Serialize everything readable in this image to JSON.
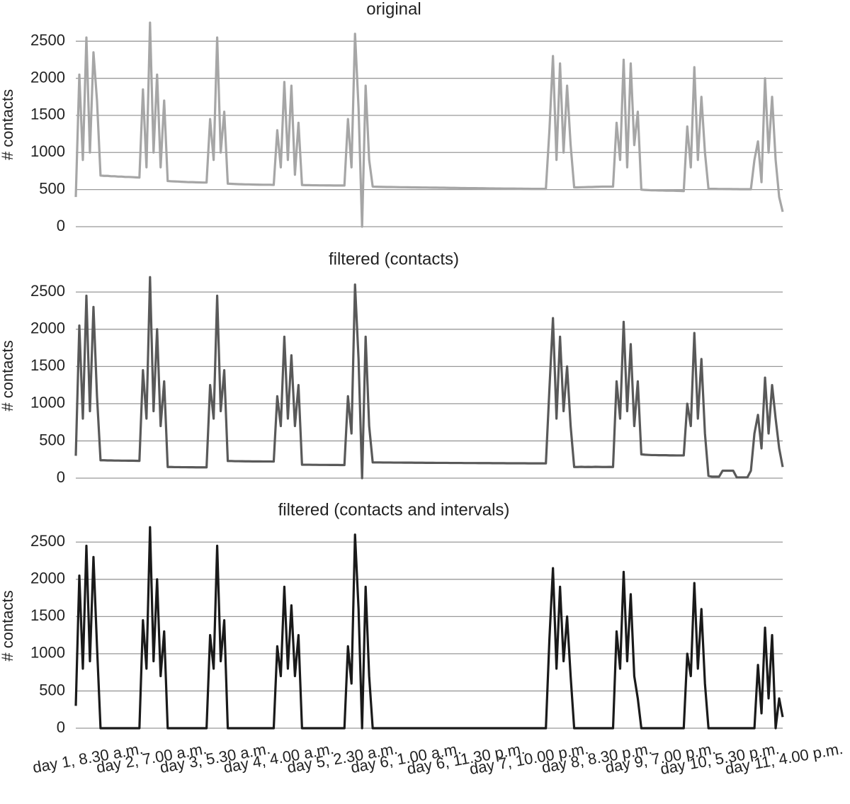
{
  "chart_data": [
    {
      "type": "line",
      "title": "original",
      "y_label": "# contacts",
      "color": "#a6a6a6",
      "ylim": [
        0,
        2750
      ],
      "yticks": [
        0,
        500,
        1000,
        1500,
        2000,
        2500
      ],
      "grid": true,
      "values": [
        400,
        2050,
        900,
        2550,
        1000,
        2350,
        1700,
        690,
        685,
        685,
        680,
        680,
        675,
        675,
        670,
        670,
        668,
        665,
        662,
        1850,
        800,
        2750,
        1000,
        2050,
        800,
        1700,
        615,
        612,
        610,
        608,
        605,
        603,
        600,
        600,
        598,
        597,
        595,
        595,
        1450,
        900,
        2550,
        1000,
        1550,
        580,
        578,
        575,
        573,
        572,
        570,
        570,
        568,
        567,
        566,
        565,
        565,
        565,
        563,
        1300,
        800,
        1950,
        900,
        1900,
        700,
        1400,
        562,
        560,
        560,
        558,
        558,
        557,
        557,
        556,
        556,
        555,
        555,
        555,
        555,
        1450,
        800,
        2600,
        1600,
        0,
        1900,
        900,
        540,
        538,
        537,
        536,
        535,
        535,
        534,
        533,
        532,
        532,
        531,
        530,
        530,
        529,
        528,
        528,
        527,
        526,
        526,
        525,
        525,
        524,
        523,
        523,
        522,
        521,
        521,
        520,
        520,
        519,
        518,
        518,
        517,
        516,
        516,
        515,
        515,
        514,
        514,
        513,
        513,
        512,
        512,
        511,
        511,
        510,
        510,
        510,
        510,
        510,
        1300,
        2300,
        900,
        2200,
        1000,
        1900,
        1100,
        530,
        530,
        532,
        533,
        535,
        535,
        537,
        538,
        540,
        540,
        540,
        540,
        1400,
        900,
        2250,
        800,
        2200,
        1100,
        1550,
        500,
        495,
        493,
        490,
        490,
        488,
        488,
        486,
        485,
        485,
        483,
        482,
        480,
        1350,
        800,
        2150,
        900,
        1750,
        1000,
        510,
        510,
        510,
        508,
        508,
        507,
        507,
        506,
        506,
        505,
        505,
        505,
        505,
        900,
        1150,
        600,
        2000,
        1000,
        1750,
        900,
        400,
        200
      ]
    },
    {
      "type": "line",
      "title": "filtered (contacts)",
      "y_label": "# contacts",
      "color": "#595959",
      "ylim": [
        0,
        2750
      ],
      "yticks": [
        0,
        500,
        1000,
        1500,
        2000,
        2500
      ],
      "grid": true,
      "values": [
        300,
        2050,
        800,
        2450,
        900,
        2300,
        1100,
        240,
        240,
        238,
        238,
        236,
        236,
        235,
        235,
        234,
        234,
        233,
        232,
        1450,
        800,
        2700,
        900,
        2000,
        700,
        1300,
        150,
        150,
        148,
        148,
        147,
        147,
        146,
        146,
        145,
        145,
        145,
        145,
        1250,
        800,
        2450,
        900,
        1450,
        230,
        230,
        228,
        228,
        227,
        226,
        226,
        225,
        225,
        225,
        224,
        224,
        224,
        223,
        1100,
        700,
        1900,
        800,
        1650,
        700,
        1250,
        180,
        180,
        180,
        179,
        179,
        178,
        178,
        178,
        177,
        177,
        177,
        176,
        176,
        1100,
        600,
        2600,
        1600,
        0,
        1900,
        700,
        212,
        211,
        211,
        210,
        210,
        210,
        209,
        209,
        209,
        208,
        208,
        208,
        207,
        207,
        207,
        206,
        206,
        206,
        205,
        205,
        205,
        205,
        204,
        204,
        204,
        204,
        203,
        203,
        203,
        203,
        202,
        202,
        202,
        202,
        201,
        201,
        201,
        201,
        200,
        200,
        200,
        200,
        200,
        200,
        199,
        199,
        199,
        199,
        199,
        198,
        1200,
        2150,
        800,
        1900,
        900,
        1500,
        700,
        150,
        150,
        152,
        150,
        151,
        150,
        152,
        151,
        150,
        150,
        151,
        150,
        1300,
        800,
        2100,
        900,
        1800,
        700,
        1300,
        320,
        315,
        312,
        310,
        310,
        308,
        308,
        308,
        306,
        306,
        305,
        305,
        305,
        1000,
        700,
        1950,
        800,
        1600,
        600,
        30,
        20,
        20,
        20,
        100,
        100,
        100,
        100,
        10,
        10,
        10,
        10,
        100,
        600,
        850,
        400,
        1350,
        600,
        1250,
        800,
        400,
        150
      ]
    },
    {
      "type": "line",
      "title": "filtered (contacts and intervals)",
      "y_label": "# contacts",
      "color": "#1a1a1a",
      "ylim": [
        0,
        2750
      ],
      "yticks": [
        0,
        500,
        1000,
        1500,
        2000,
        2500
      ],
      "grid": true,
      "values": [
        300,
        2050,
        800,
        2450,
        900,
        2300,
        1100,
        0,
        0,
        0,
        0,
        0,
        0,
        0,
        0,
        0,
        0,
        0,
        0,
        1450,
        800,
        2700,
        900,
        2000,
        700,
        1300,
        0,
        0,
        0,
        0,
        0,
        0,
        0,
        0,
        0,
        0,
        0,
        0,
        1250,
        800,
        2450,
        900,
        1450,
        0,
        0,
        0,
        0,
        0,
        0,
        0,
        0,
        0,
        0,
        0,
        0,
        0,
        0,
        1100,
        700,
        1900,
        800,
        1650,
        700,
        1250,
        0,
        0,
        0,
        0,
        0,
        0,
        0,
        0,
        0,
        0,
        0,
        0,
        0,
        1100,
        600,
        2600,
        1600,
        0,
        1900,
        700,
        0,
        0,
        0,
        0,
        0,
        0,
        0,
        0,
        0,
        0,
        0,
        0,
        0,
        0,
        0,
        0,
        0,
        0,
        0,
        0,
        0,
        0,
        0,
        0,
        0,
        0,
        0,
        0,
        0,
        0,
        0,
        0,
        0,
        0,
        0,
        0,
        0,
        0,
        0,
        0,
        0,
        0,
        0,
        0,
        0,
        0,
        0,
        0,
        0,
        0,
        1200,
        2150,
        800,
        1900,
        900,
        1500,
        700,
        0,
        0,
        0,
        0,
        0,
        0,
        0,
        0,
        0,
        0,
        0,
        0,
        1300,
        800,
        2100,
        900,
        1800,
        700,
        400,
        0,
        0,
        0,
        0,
        0,
        0,
        0,
        0,
        0,
        0,
        0,
        0,
        0,
        1000,
        700,
        1950,
        800,
        1600,
        600,
        0,
        0,
        0,
        0,
        0,
        0,
        0,
        0,
        0,
        0,
        0,
        0,
        0,
        0,
        850,
        200,
        1350,
        400,
        1250,
        0,
        400,
        150
      ],
      "categories": [
        "day 1, 8.30 a.m.",
        null,
        null,
        null,
        null,
        null,
        null,
        null,
        null,
        null,
        null,
        null,
        null,
        null,
        null,
        null,
        null,
        null,
        "day 2, 7.00 a.m.",
        null,
        null,
        null,
        null,
        null,
        null,
        null,
        null,
        null,
        null,
        null,
        null,
        null,
        null,
        null,
        null,
        null,
        "day 3, 5.30 a.m.",
        null,
        null,
        null,
        null,
        null,
        null,
        null,
        null,
        null,
        null,
        null,
        null,
        null,
        null,
        null,
        null,
        null,
        "day 4, 4.00 a.m.",
        null,
        null,
        null,
        null,
        null,
        null,
        null,
        null,
        null,
        null,
        null,
        null,
        null,
        null,
        null,
        null,
        null,
        "day 5, 2.30 a.m.",
        null,
        null,
        null,
        null,
        null,
        null,
        null,
        null,
        null,
        null,
        null,
        null,
        null,
        null,
        null,
        null,
        null,
        "day 6, 1.00 a.m.",
        null,
        null,
        null,
        null,
        null,
        null,
        null,
        null,
        null,
        null,
        null,
        null,
        null,
        null,
        null,
        null,
        null,
        "day 6, 11.30 p.m.",
        null,
        null,
        null,
        null,
        null,
        null,
        null,
        null,
        null,
        null,
        null,
        null,
        null,
        null,
        null,
        null,
        null,
        "day 7, 10.00 p.m.",
        null,
        null,
        null,
        null,
        null,
        null,
        null,
        null,
        null,
        null,
        null,
        null,
        null,
        null,
        null,
        null,
        null,
        "day 8, 8.30 p.m.",
        null,
        null,
        null,
        null,
        null,
        null,
        null,
        null,
        null,
        null,
        null,
        null,
        null,
        null,
        null,
        null,
        null,
        "day 9, 7.00 p.m.",
        null,
        null,
        null,
        null,
        null,
        null,
        null,
        null,
        null,
        null,
        null,
        null,
        null,
        null,
        null,
        null,
        null,
        "day 10, 5.30 p.m.",
        null,
        null,
        null,
        null,
        null,
        null,
        null,
        null,
        null,
        null,
        null,
        null,
        null,
        null,
        null,
        null,
        null,
        "day 11, 4.00 p.m.",
        null,
        null
      ]
    }
  ]
}
